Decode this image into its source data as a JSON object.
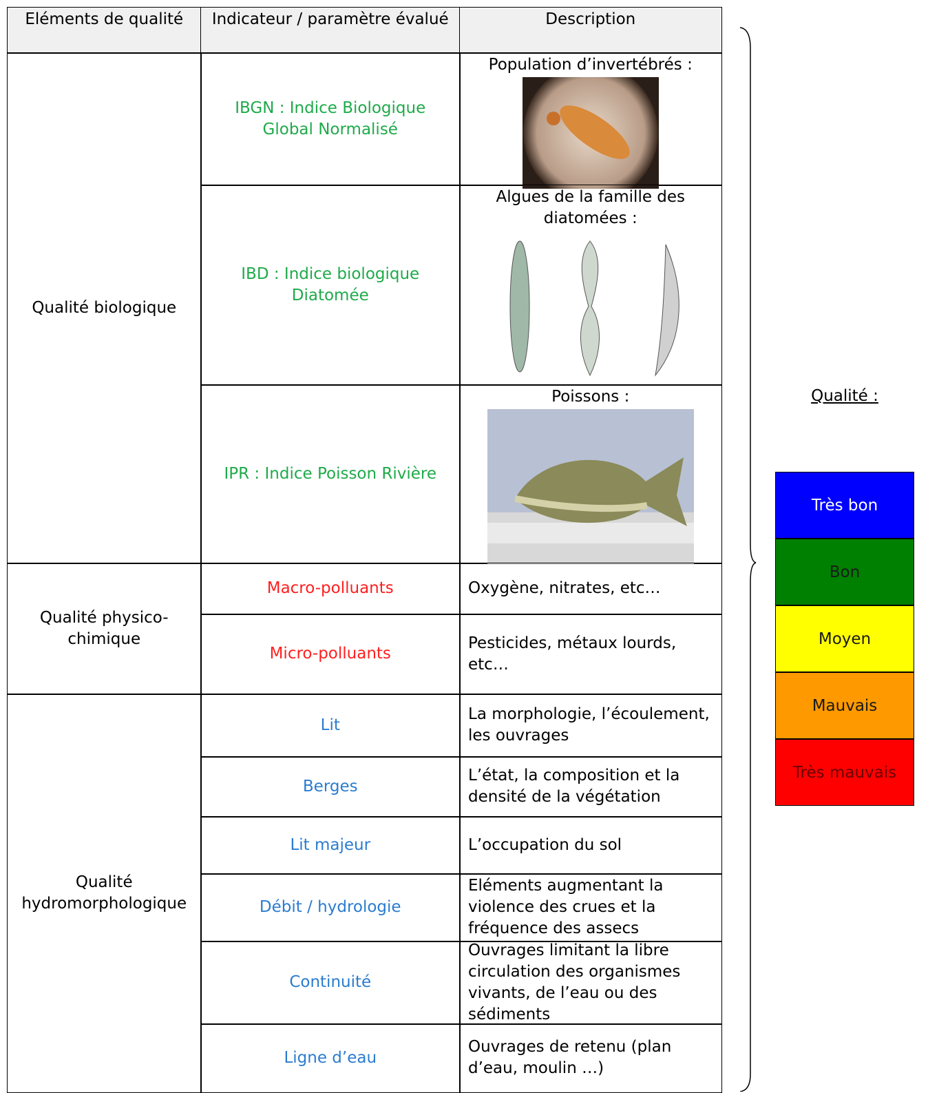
{
  "table": {
    "headers": [
      "Eléments de qualité",
      "Indicateur / paramètre évalué",
      "Description"
    ],
    "groups": [
      {
        "label": "Qualité biologique",
        "color": "#1faa4a",
        "rows": [
          {
            "indicator": "IBGN : Indice Biologique Global Normalisé",
            "description": "Population d’invertébrés :"
          },
          {
            "indicator": "IBD : Indice biologique Diatomée",
            "description": "Algues de la famille des diatomées :"
          },
          {
            "indicator": "IPR : Indice Poisson Rivière",
            "description": "Poissons :"
          }
        ]
      },
      {
        "label": "Qualité physico-chimique",
        "color": "#ff1f1f",
        "rows": [
          {
            "indicator": "Macro-polluants",
            "description": "Oxygène, nitrates, etc…"
          },
          {
            "indicator": "Micro-polluants",
            "description": "Pesticides, métaux lourds, etc…"
          }
        ]
      },
      {
        "label": "Qualité hydromorphologique",
        "color": "#2a7ccf",
        "rows": [
          {
            "indicator": "Lit",
            "description": "La morphologie, l’écoulement, les ouvrages"
          },
          {
            "indicator": "Berges",
            "description": "L’état, la composition et la densité de la végétation"
          },
          {
            "indicator": "Lit majeur",
            "description": "L’occupation du sol"
          },
          {
            "indicator": "Débit / hydrologie",
            "description": "Eléments augmentant la violence des crues et la fréquence des assecs"
          },
          {
            "indicator": "Continuité",
            "description": "Ouvrages limitant la libre circulation des organismes vivants, de l’eau ou des sédiments"
          },
          {
            "indicator": "Ligne d’eau",
            "description": "Ouvrages de retenu (plan d’eau, moulin …)"
          }
        ]
      }
    ]
  },
  "legend": {
    "title": "Qualité :",
    "levels": [
      {
        "label": "Très bon",
        "color": "#0000ff",
        "text_color": "#ffffff"
      },
      {
        "label": "Bon",
        "color": "#008000",
        "text_color": "#1a1a1a"
      },
      {
        "label": "Moyen",
        "color": "#ffff00",
        "text_color": "#1a1a1a"
      },
      {
        "label": "Mauvais",
        "color": "#ff9900",
        "text_color": "#1a1a1a"
      },
      {
        "label": "Très mauvais",
        "color": "#ff0000",
        "text_color": "#6b0000"
      }
    ]
  }
}
